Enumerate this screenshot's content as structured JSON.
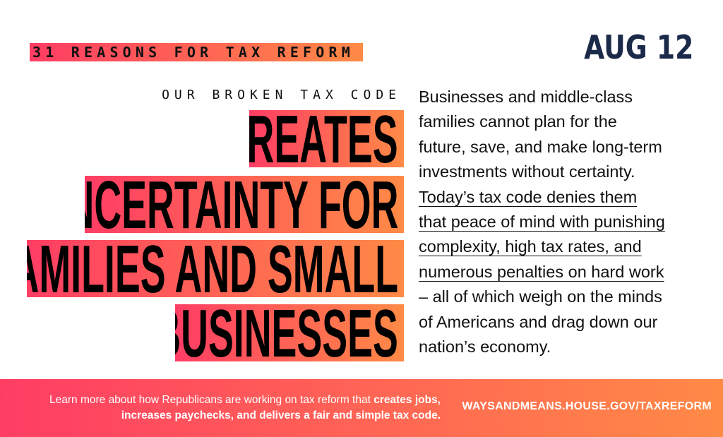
{
  "series_label": "31 REASONS FOR TAX REFORM",
  "date": "AUG 12",
  "kicker": "OUR BROKEN TAX CODE",
  "headline": [
    "CREATES",
    "UNCERTAINTY FOR",
    "FAMILIES AND SMALL",
    "BUSINESSES"
  ],
  "body_lines": [
    {
      "text": "Businesses and middle-class",
      "underlined": false
    },
    {
      "text": "families cannot plan for the",
      "underlined": false
    },
    {
      "text": "future, save, and make long-term",
      "underlined": false
    },
    {
      "text": "investments without certainty.",
      "underlined": false
    },
    {
      "text": "Today’s tax code denies them",
      "underlined": true
    },
    {
      "text": "that peace of mind with punishing",
      "underlined": true
    },
    {
      "text": "complexity, high tax rates, and",
      "underlined": true
    },
    {
      "text": "numerous penalties on hard work",
      "underlined": true
    },
    {
      "text": "– all of which weigh on the minds",
      "underlined": false
    },
    {
      "text": "of Americans and drag down our",
      "underlined": false
    },
    {
      "text": "nation’s economy.",
      "underlined": false
    }
  ],
  "footer": {
    "text_plain": "Learn more about how Republicans are working on tax reform that ",
    "text_bold": "creates jobs, increases paychecks, and delivers a fair and simple tax code.",
    "url": "WAYSANDMEANS.HOUSE.GOV/TAXREFORM"
  },
  "colors": {
    "gradient_start": "#ff3d64",
    "gradient_end": "#ff8a46",
    "date": "#1c2a4a"
  }
}
